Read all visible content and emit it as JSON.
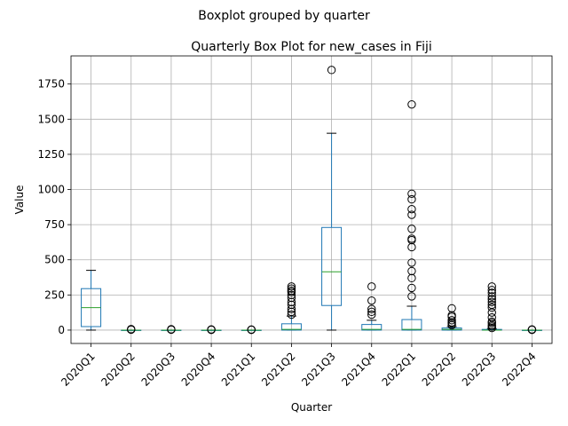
{
  "chart_data": {
    "type": "boxplot",
    "suptitle": "Boxplot grouped by quarter",
    "title": "Quarterly Box Plot for new_cases in Fiji",
    "xlabel": "Quarter",
    "ylabel": "Value",
    "ylim": [
      -95,
      1950
    ],
    "yticks": [
      0,
      250,
      500,
      750,
      1000,
      1250,
      1500,
      1750
    ],
    "grid": true,
    "categories": [
      "2020Q1",
      "2020Q2",
      "2020Q3",
      "2020Q4",
      "2021Q1",
      "2021Q2",
      "2021Q3",
      "2021Q4",
      "2022Q1",
      "2022Q2",
      "2022Q3",
      "2022Q4"
    ],
    "boxes": [
      {
        "whislo": 0,
        "q1": 25,
        "med": 160,
        "q3": 295,
        "whishi": 425,
        "fliers": []
      },
      {
        "whislo": 0,
        "q1": 0,
        "med": 0,
        "q3": 0,
        "whishi": 0,
        "fliers": [
          3,
          7
        ]
      },
      {
        "whislo": 0,
        "q1": 0,
        "med": 0,
        "q3": 0,
        "whishi": 0,
        "fliers": [
          3,
          6
        ]
      },
      {
        "whislo": 0,
        "q1": 0,
        "med": 0,
        "q3": 0,
        "whishi": 0,
        "fliers": [
          2,
          5
        ]
      },
      {
        "whislo": 0,
        "q1": 0,
        "med": 0,
        "q3": 0,
        "whishi": 0,
        "fliers": [
          2,
          4
        ]
      },
      {
        "whislo": 0,
        "q1": 0,
        "med": 5,
        "q3": 45,
        "whishi": 100,
        "fliers": [
          110,
          130,
          150,
          180,
          200,
          230,
          250,
          270,
          280,
          295,
          310
        ]
      },
      {
        "whislo": 0,
        "q1": 175,
        "med": 415,
        "q3": 730,
        "whishi": 1400,
        "fliers": [
          1850
        ]
      },
      {
        "whislo": 0,
        "q1": 0,
        "med": 5,
        "q3": 40,
        "whishi": 70,
        "fliers": [
          110,
          130,
          150,
          210,
          310
        ]
      },
      {
        "whislo": 0,
        "q1": 0,
        "med": 5,
        "q3": 75,
        "whishi": 170,
        "fliers": [
          240,
          300,
          370,
          420,
          480,
          590,
          640,
          650,
          720,
          820,
          860,
          930,
          970,
          1605
        ]
      },
      {
        "whislo": 0,
        "q1": 0,
        "med": 5,
        "q3": 15,
        "whishi": 25,
        "fliers": [
          35,
          45,
          55,
          70,
          95,
          105,
          155
        ]
      },
      {
        "whislo": 0,
        "q1": 0,
        "med": 0,
        "q3": 5,
        "whishi": 10,
        "fliers": [
          15,
          25,
          35,
          50,
          60,
          90,
          125,
          160,
          180,
          200,
          220,
          240,
          265,
          285,
          310
        ]
      },
      {
        "whislo": 0,
        "q1": 0,
        "med": 0,
        "q3": 0,
        "whishi": 0,
        "fliers": [
          2,
          5
        ]
      }
    ]
  }
}
